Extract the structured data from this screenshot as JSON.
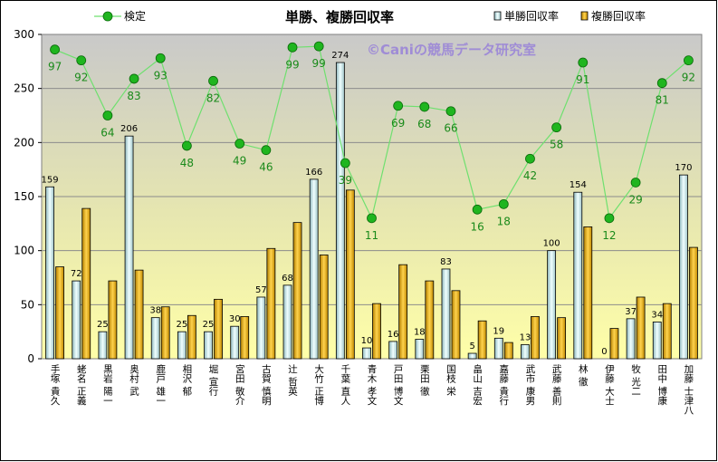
{
  "chart_data": {
    "type": "bar",
    "title": "単勝、複勝回収率",
    "watermark": "©Caniの競馬データ研究室",
    "ylim": [
      0,
      300
    ],
    "yticks": [
      0,
      50,
      100,
      150,
      200,
      250,
      300
    ],
    "categories": [
      "手塚 貴久",
      "蛯名 正義",
      "黒岩 陽一",
      "奥村 武",
      "鹿戸 雄一",
      "相沢 郁",
      "堀 宣行",
      "宮田 敬介",
      "古賀 慎明",
      "辻 哲英",
      "大竹 正博",
      "千葉 直人",
      "青木 孝文",
      "戸田 博文",
      "栗田 徹",
      "国枝 栄",
      "畠山 吉宏",
      "嘉藤 貴行",
      "武市 康男",
      "武藤 善則",
      "林 徹",
      "伊藤 大士",
      "牧 光二",
      "田中 博康",
      "加藤 士津八"
    ],
    "series": [
      {
        "name": "単勝回収率",
        "type": "bar",
        "color": "#dff5f7",
        "values": [
          159,
          72,
          25,
          206,
          38,
          25,
          25,
          30,
          57,
          68,
          166,
          274,
          10,
          16,
          18,
          83,
          5,
          19,
          13,
          100,
          154,
          0,
          37,
          34,
          170
        ]
      },
      {
        "name": "複勝回収率",
        "type": "bar",
        "color": "#e6a800",
        "values": [
          85,
          139,
          72,
          82,
          48,
          40,
          55,
          39,
          102,
          126,
          96,
          156,
          51,
          87,
          72,
          63,
          35,
          15,
          39,
          38,
          122,
          28,
          57,
          51,
          103
        ]
      },
      {
        "name": "検定",
        "type": "line",
        "color": "#2db52d",
        "values": [
          97,
          92,
          64,
          83,
          93,
          48,
          82,
          49,
          46,
          99,
          99,
          39,
          11,
          69,
          68,
          66,
          16,
          18,
          42,
          58,
          91,
          12,
          29,
          81,
          92
        ],
        "y_positions": [
          286,
          276,
          225,
          259,
          278,
          197,
          257,
          199,
          193,
          288,
          289,
          181,
          130,
          234,
          233,
          229,
          138,
          143,
          185,
          214,
          274,
          130,
          163,
          255,
          276
        ]
      }
    ],
    "legend": {
      "position": "top",
      "items": [
        "検定",
        "単勝回収率",
        "複勝回収率"
      ]
    }
  }
}
